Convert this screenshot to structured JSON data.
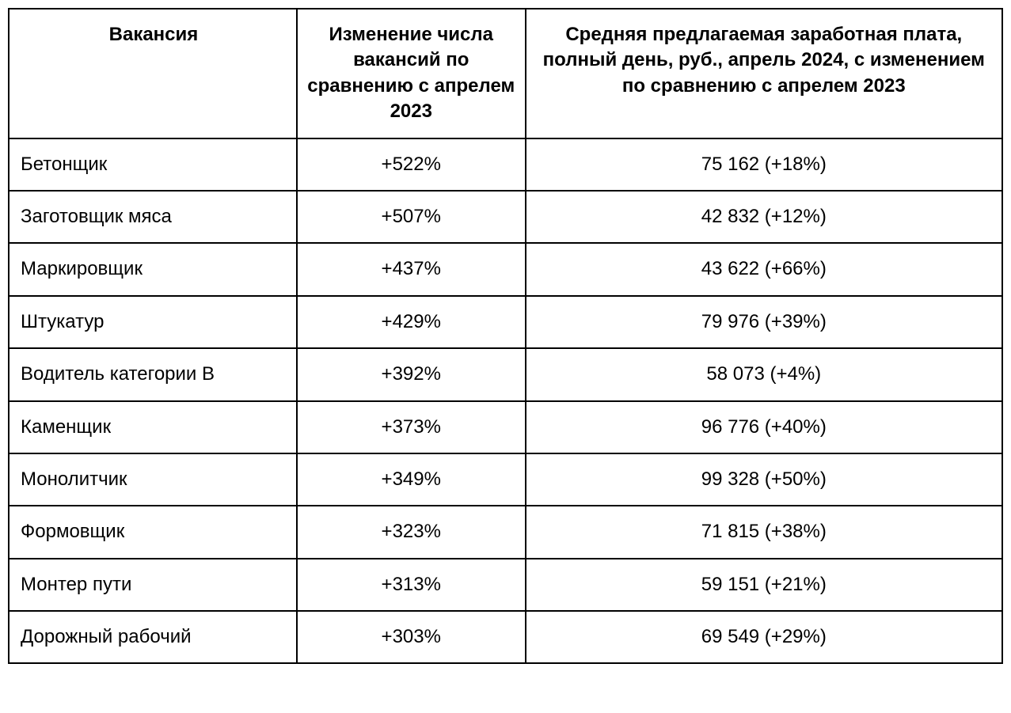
{
  "table": {
    "type": "table",
    "border_color": "#000000",
    "border_width": 2,
    "background_color": "#ffffff",
    "font_family": "Arial",
    "header_fontsize": 24,
    "header_fontweight": "bold",
    "cell_fontsize": 24,
    "cell_fontweight": "normal",
    "columns": [
      {
        "key": "vacancy",
        "header": "Вакансия",
        "width_pct": 29,
        "align_header": "center",
        "align_body": "left"
      },
      {
        "key": "change",
        "header": "Изменение числа вакансий по сравнению с апрелем 2023",
        "width_pct": 23,
        "align_header": "center",
        "align_body": "center"
      },
      {
        "key": "salary",
        "header": "Средняя предлагаемая заработная плата, полный день, руб., апрель 2024, с изменением по сравнению с апрелем 2023",
        "width_pct": 48,
        "align_header": "center",
        "align_body": "center"
      }
    ],
    "rows": [
      {
        "vacancy": "Бетонщик",
        "change": "+522%",
        "salary": "75 162 (+18%)"
      },
      {
        "vacancy": "Заготовщик мяса",
        "change": "+507%",
        "salary": "42 832 (+12%)"
      },
      {
        "vacancy": "Маркировщик",
        "change": "+437%",
        "salary": "43 622 (+66%)"
      },
      {
        "vacancy": "Штукатур",
        "change": "+429%",
        "salary": "79 976 (+39%)"
      },
      {
        "vacancy": "Водитель категории В",
        "change": "+392%",
        "salary": "58 073 (+4%)"
      },
      {
        "vacancy": "Каменщик",
        "change": "+373%",
        "salary": "96 776 (+40%)"
      },
      {
        "vacancy": "Монолитчик",
        "change": "+349%",
        "salary": "99 328 (+50%)"
      },
      {
        "vacancy": "Формовщик",
        "change": "+323%",
        "salary": "71 815 (+38%)"
      },
      {
        "vacancy": "Монтер пути",
        "change": "+313%",
        "salary": "59 151 (+21%)"
      },
      {
        "vacancy": "Дорожный рабочий",
        "change": "+303%",
        "salary": "69 549 (+29%)"
      }
    ]
  }
}
